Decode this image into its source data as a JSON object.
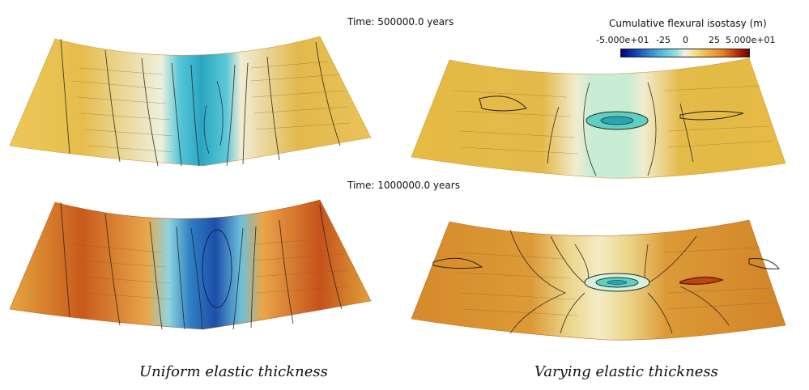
{
  "time_labels": {
    "top": "Time: 500000.0 years",
    "bottom": "Time: 1000000.0 years"
  },
  "colorbar": {
    "title": "Cumulative flexural isostasy (m)",
    "ticks": [
      "-5.000e+01",
      "-25",
      "0",
      "25",
      "5.000e+01"
    ],
    "colors": [
      "#000080",
      "#3b8fd6",
      "#eef2e6",
      "#f2b145",
      "#6b0000"
    ]
  },
  "captions": {
    "left": "Uniform elastic thickness",
    "right": "Varying elastic thickness"
  },
  "panels": [
    {
      "id": "uniform-500k",
      "colors": {
        "edge": "#e8c04e",
        "mid": "#ddb24a",
        "center": "#2fb3c7",
        "core": "#2aa6c2"
      }
    },
    {
      "id": "varying-500k",
      "colors": {
        "edge": "#e4ba45",
        "mid": "#dcb04a",
        "center": "#c9ecd4",
        "core": "#a9e0cc"
      }
    },
    {
      "id": "uniform-1000k",
      "colors": {
        "edge": "#e0a23a",
        "mid": "#c5521a",
        "center": "#2e88c9",
        "core": "#1d4fa8"
      }
    },
    {
      "id": "varying-1000k",
      "colors": {
        "edge": "#d58a2a",
        "mid": "#d9932f",
        "center": "#f1e2a0",
        "core": "#d7f0dc"
      }
    }
  ]
}
